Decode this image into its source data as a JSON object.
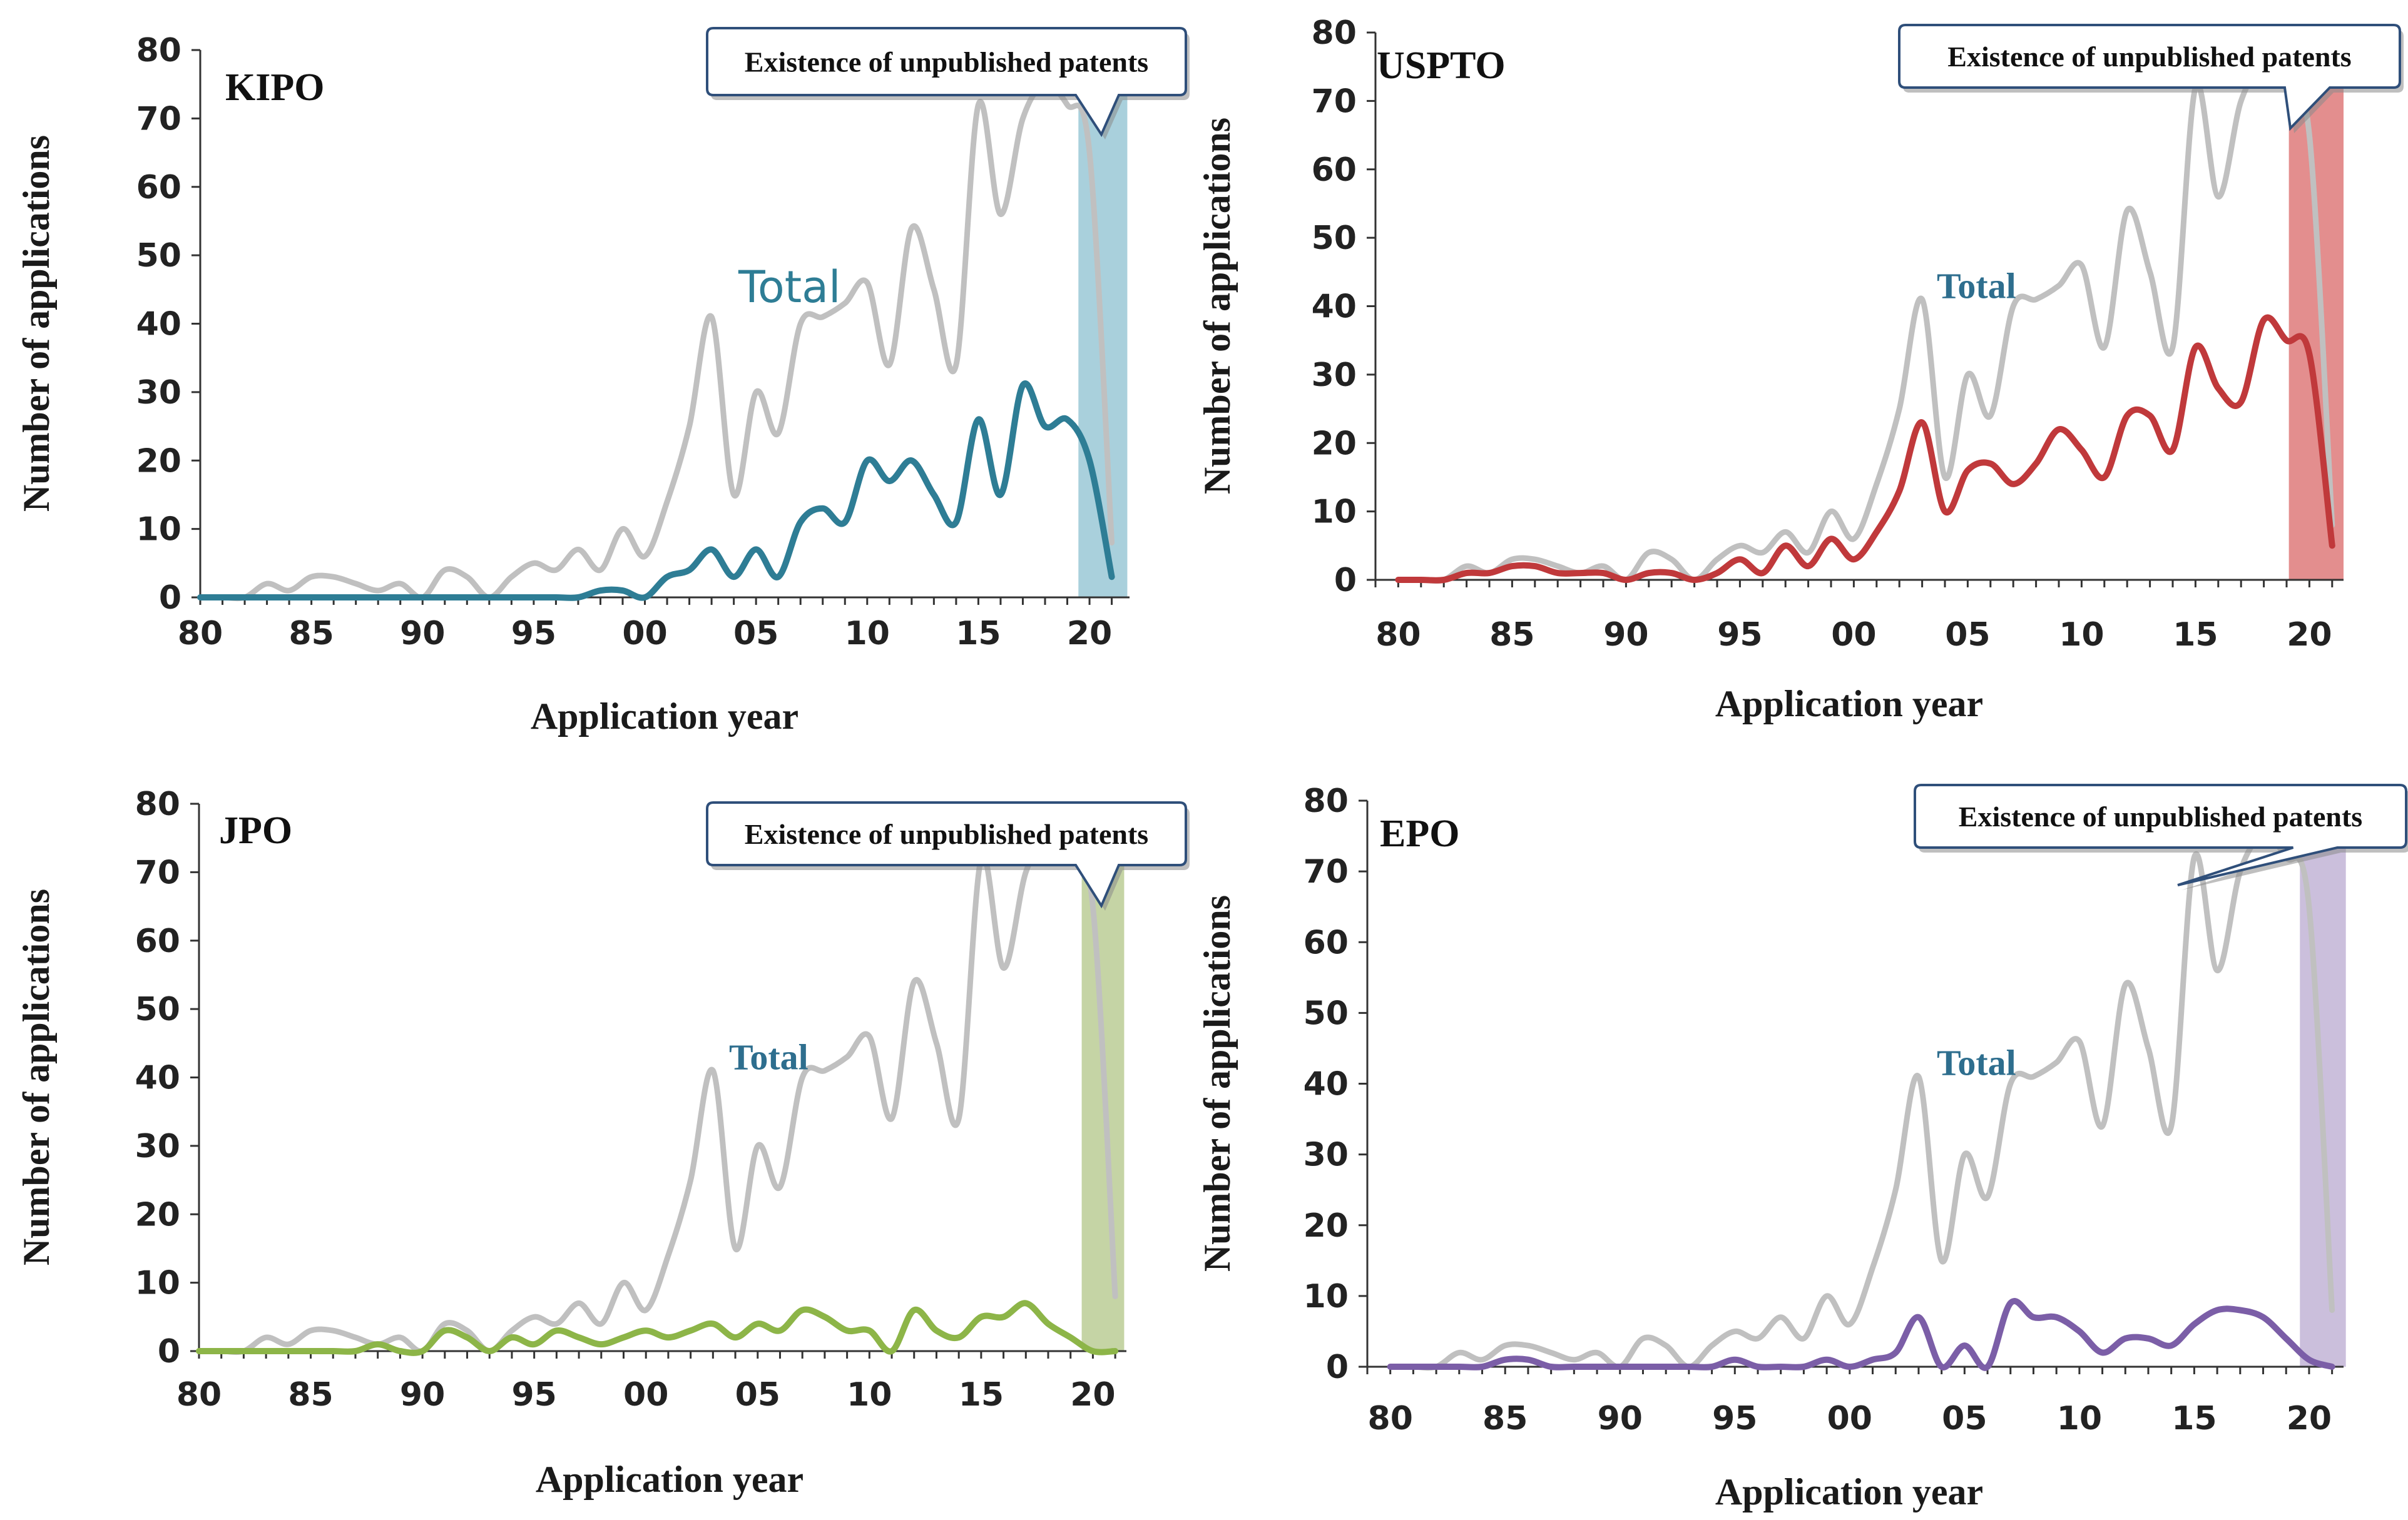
{
  "figure": {
    "background": "#ffffff"
  },
  "chart_data": [
    {
      "type": "line",
      "title": "KIPO",
      "xlabel": "Application year",
      "ylabel": "Number of applications",
      "ylim": [
        0,
        80
      ],
      "yticks": [
        "0",
        "10",
        "20",
        "30",
        "40",
        "50",
        "60",
        "70",
        "80"
      ],
      "xticks": [
        "80",
        "85",
        "90",
        "95",
        "00",
        "05",
        "10",
        "15",
        "20"
      ],
      "x": [
        1980,
        1981,
        1982,
        1983,
        1984,
        1985,
        1986,
        1987,
        1988,
        1989,
        1990,
        1991,
        1992,
        1993,
        1994,
        1995,
        1996,
        1997,
        1998,
        1999,
        2000,
        2001,
        2002,
        2003,
        2004,
        2005,
        2006,
        2007,
        2008,
        2009,
        2010,
        2011,
        2012,
        2013,
        2014,
        2015,
        2016,
        2017,
        2018,
        2019,
        2020,
        2021
      ],
      "series": [
        {
          "name": "Total",
          "color": "#c0c0c0",
          "values": [
            0,
            0,
            0,
            2,
            1,
            3,
            3,
            2,
            1,
            2,
            0,
            4,
            3,
            0,
            3,
            5,
            4,
            7,
            4,
            10,
            6,
            14,
            25,
            41,
            15,
            30,
            24,
            40,
            41,
            43,
            46,
            34,
            54,
            45,
            34,
            72,
            56,
            70,
            75,
            72,
            65,
            8
          ]
        },
        {
          "name": "KIPO",
          "color": "#2e7d95",
          "values": [
            0,
            0,
            0,
            0,
            0,
            0,
            0,
            0,
            0,
            0,
            0,
            0,
            0,
            0,
            0,
            0,
            0,
            0,
            1,
            1,
            0,
            3,
            4,
            7,
            3,
            7,
            3,
            11,
            13,
            11,
            20,
            17,
            20,
            15,
            11,
            26,
            15,
            31,
            25,
            26,
            20,
            3
          ]
        }
      ],
      "annotation_label": "Total",
      "annotation_color": "#2e7d95",
      "callout": "Existence of unpublished patents",
      "highlight_color": "#a9d0dc",
      "highlight_from": 2019.5,
      "highlight_to": 2021.7
    },
    {
      "type": "line",
      "title": "USPTO",
      "xlabel": "Application year",
      "ylabel": "Number of applications",
      "ylim": [
        0,
        80
      ],
      "yticks": [
        "0",
        "10",
        "20",
        "30",
        "40",
        "50",
        "60",
        "70",
        "80"
      ],
      "xticks": [
        "80",
        "85",
        "90",
        "95",
        "00",
        "05",
        "10",
        "15",
        "20"
      ],
      "x": [
        1980,
        1981,
        1982,
        1983,
        1984,
        1985,
        1986,
        1987,
        1988,
        1989,
        1990,
        1991,
        1992,
        1993,
        1994,
        1995,
        1996,
        1997,
        1998,
        1999,
        2000,
        2001,
        2002,
        2003,
        2004,
        2005,
        2006,
        2007,
        2008,
        2009,
        2010,
        2011,
        2012,
        2013,
        2014,
        2015,
        2016,
        2017,
        2018,
        2019,
        2020,
        2021
      ],
      "series": [
        {
          "name": "Total",
          "color": "#c0c0c0",
          "values": [
            0,
            0,
            0,
            2,
            1,
            3,
            3,
            2,
            1,
            2,
            0,
            4,
            3,
            0,
            3,
            5,
            4,
            7,
            4,
            10,
            6,
            14,
            25,
            41,
            15,
            30,
            24,
            40,
            41,
            43,
            46,
            34,
            54,
            45,
            34,
            72,
            56,
            70,
            75,
            72,
            65,
            8
          ]
        },
        {
          "name": "USPTO",
          "color": "#c0393b",
          "values": [
            0,
            0,
            0,
            1,
            1,
            2,
            2,
            1,
            1,
            1,
            0,
            1,
            1,
            0,
            1,
            3,
            1,
            5,
            2,
            6,
            3,
            7,
            13,
            23,
            10,
            16,
            17,
            14,
            17,
            22,
            19,
            15,
            24,
            24,
            19,
            34,
            28,
            26,
            38,
            35,
            33,
            5
          ]
        }
      ],
      "annotation_label": "Total",
      "annotation_color": "#2e6e8e",
      "callout": "Existence of unpublished patents",
      "highlight_color": "#e38e8e",
      "highlight_from": 2019.1,
      "highlight_to": 2021.5
    },
    {
      "type": "line",
      "title": "JPO",
      "xlabel": "Application year",
      "ylabel": "Number of applications",
      "ylim": [
        0,
        80
      ],
      "yticks": [
        "0",
        "10",
        "20",
        "30",
        "40",
        "50",
        "60",
        "70",
        "80"
      ],
      "xticks": [
        "80",
        "85",
        "90",
        "95",
        "00",
        "05",
        "10",
        "15",
        "20"
      ],
      "x": [
        1980,
        1981,
        1982,
        1983,
        1984,
        1985,
        1986,
        1987,
        1988,
        1989,
        1990,
        1991,
        1992,
        1993,
        1994,
        1995,
        1996,
        1997,
        1998,
        1999,
        2000,
        2001,
        2002,
        2003,
        2004,
        2005,
        2006,
        2007,
        2008,
        2009,
        2010,
        2011,
        2012,
        2013,
        2014,
        2015,
        2016,
        2017,
        2018,
        2019,
        2020,
        2021
      ],
      "series": [
        {
          "name": "Total",
          "color": "#c0c0c0",
          "values": [
            0,
            0,
            0,
            2,
            1,
            3,
            3,
            2,
            1,
            2,
            0,
            4,
            3,
            0,
            3,
            5,
            4,
            7,
            4,
            10,
            6,
            14,
            25,
            41,
            15,
            30,
            24,
            40,
            41,
            43,
            46,
            34,
            54,
            45,
            34,
            72,
            56,
            70,
            75,
            72,
            65,
            8
          ]
        },
        {
          "name": "JPO",
          "color": "#8db548",
          "values": [
            0,
            0,
            0,
            0,
            0,
            0,
            0,
            0,
            1,
            0,
            0,
            3,
            2,
            0,
            2,
            1,
            3,
            2,
            1,
            2,
            3,
            2,
            3,
            4,
            2,
            4,
            3,
            6,
            5,
            3,
            3,
            0,
            6,
            3,
            2,
            5,
            5,
            7,
            4,
            2,
            0,
            0
          ]
        }
      ],
      "annotation_label": "Total",
      "annotation_color": "#2e6e8e",
      "callout": "Existence of unpublished patents",
      "highlight_color": "#c5d4a5",
      "highlight_from": 2019.5,
      "highlight_to": 2021.4
    },
    {
      "type": "line",
      "title": "EPO",
      "xlabel": "Application year",
      "ylabel": "Number of applications",
      "ylim": [
        0,
        80
      ],
      "yticks": [
        "0",
        "10",
        "20",
        "30",
        "40",
        "50",
        "60",
        "70",
        "80"
      ],
      "xticks": [
        "80",
        "85",
        "90",
        "95",
        "00",
        "05",
        "10",
        "15",
        "20"
      ],
      "x": [
        1980,
        1981,
        1982,
        1983,
        1984,
        1985,
        1986,
        1987,
        1988,
        1989,
        1990,
        1991,
        1992,
        1993,
        1994,
        1995,
        1996,
        1997,
        1998,
        1999,
        2000,
        2001,
        2002,
        2003,
        2004,
        2005,
        2006,
        2007,
        2008,
        2009,
        2010,
        2011,
        2012,
        2013,
        2014,
        2015,
        2016,
        2017,
        2018,
        2019,
        2020,
        2021
      ],
      "series": [
        {
          "name": "Total",
          "color": "#c0c0c0",
          "values": [
            0,
            0,
            0,
            2,
            1,
            3,
            3,
            2,
            1,
            2,
            0,
            4,
            3,
            0,
            3,
            5,
            4,
            7,
            4,
            10,
            6,
            14,
            25,
            41,
            15,
            30,
            24,
            40,
            41,
            43,
            46,
            34,
            54,
            45,
            34,
            72,
            56,
            70,
            75,
            72,
            65,
            8
          ]
        },
        {
          "name": "EPO",
          "color": "#7b5ea7",
          "values": [
            0,
            0,
            0,
            0,
            0,
            1,
            1,
            0,
            0,
            0,
            0,
            0,
            0,
            0,
            0,
            1,
            0,
            0,
            0,
            1,
            0,
            1,
            2,
            7,
            0,
            3,
            0,
            9,
            7,
            7,
            5,
            2,
            4,
            4,
            3,
            6,
            8,
            8,
            7,
            4,
            1,
            0
          ]
        }
      ],
      "annotation_label": "Total",
      "annotation_color": "#2e6e8e",
      "callout": "Existence of unpublished patents",
      "highlight_color": "#cbbfdc",
      "highlight_from": 2019.6,
      "highlight_to": 2021.6
    }
  ]
}
